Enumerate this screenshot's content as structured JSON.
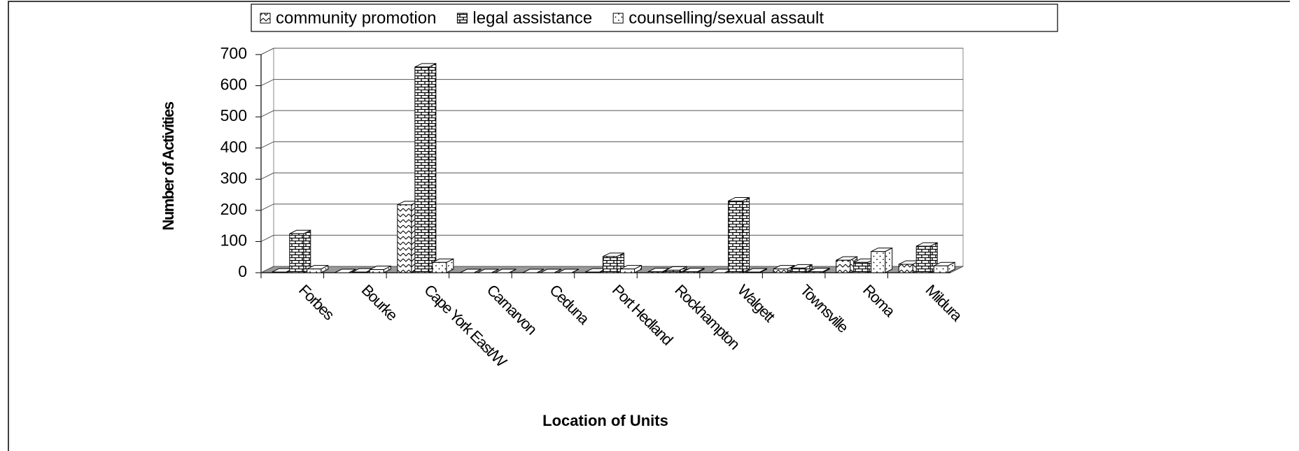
{
  "chart_data": {
    "type": "bar3d",
    "categories": [
      "Forbes",
      "Bourke",
      "Cape York East/W",
      "Carnarvon",
      "Ceduna",
      "Port Hedland",
      "Rockhampton",
      "Walgett",
      "Townsville",
      "Roma",
      "Mildura"
    ],
    "series": [
      {
        "name": "community promotion",
        "color": "#ffffff",
        "pattern": "zigzag",
        "values": [
          2,
          0,
          218,
          0,
          0,
          2,
          3,
          0,
          12,
          40,
          27
        ]
      },
      {
        "name": "legal assistance",
        "color": "#ffffff",
        "pattern": "brick",
        "values": [
          125,
          2,
          660,
          0,
          0,
          52,
          8,
          230,
          15,
          33,
          85
        ]
      },
      {
        "name": "counselling/sexual assault",
        "color": "#ffffff",
        "pattern": "dots",
        "values": [
          12,
          10,
          33,
          0,
          0,
          12,
          3,
          2,
          3,
          68,
          22
        ]
      }
    ],
    "ylim": [
      0,
      700
    ],
    "yticks": [
      0,
      100,
      200,
      300,
      400,
      500,
      600,
      700
    ],
    "grid": true,
    "y_label": "Number of Activities",
    "x_label": "Location of Units",
    "legend": "top"
  }
}
